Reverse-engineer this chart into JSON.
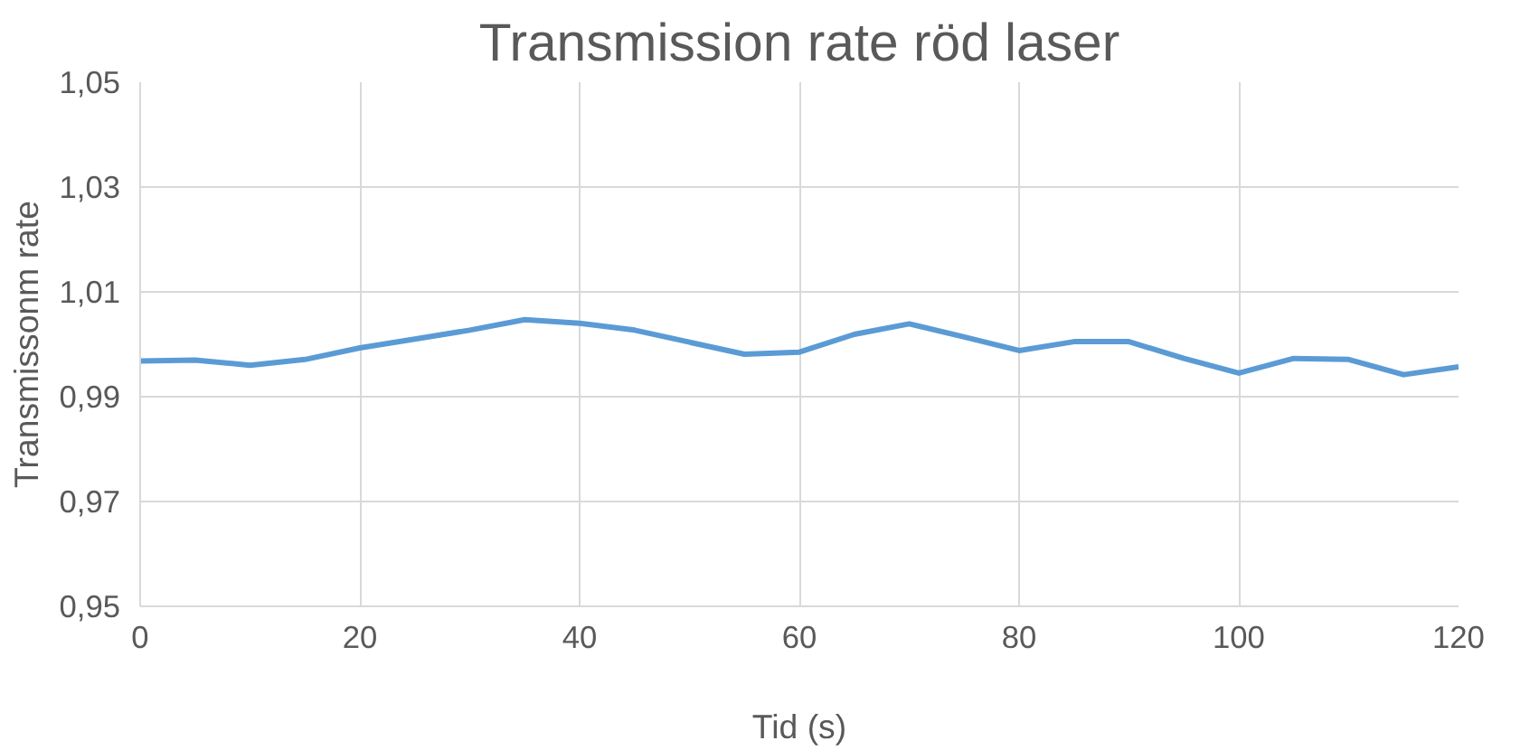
{
  "chart_data": {
    "type": "line",
    "title": "Transmission rate röd laser",
    "xlabel": "Tid (s)",
    "ylabel": "Transmissonm rate",
    "x": [
      0,
      5,
      10,
      15,
      20,
      25,
      30,
      35,
      40,
      45,
      50,
      55,
      60,
      65,
      70,
      75,
      80,
      85,
      90,
      95,
      100,
      105,
      110,
      115,
      120
    ],
    "series": [
      {
        "color": "#5b9bd5",
        "values": [
          0.9968,
          0.997,
          0.996,
          0.9971,
          0.9993,
          1.001,
          1.0027,
          1.0047,
          1.004,
          1.0027,
          1.0004,
          0.9981,
          0.9985,
          1.0019,
          1.0039,
          1.0014,
          0.9988,
          1.0005,
          1.0005,
          0.9973,
          0.9945,
          0.9973,
          0.9971,
          0.9942,
          0.9957
        ]
      }
    ],
    "xlim": [
      0,
      120
    ],
    "xticks": [
      0,
      20,
      40,
      60,
      80,
      100,
      120
    ],
    "ylim": [
      0.95,
      1.05
    ],
    "yticks": [
      {
        "value": 0.95,
        "label": "0,95"
      },
      {
        "value": 0.97,
        "label": "0,97"
      },
      {
        "value": 0.99,
        "label": "0,99"
      },
      {
        "value": 1.01,
        "label": "1,01"
      },
      {
        "value": 1.03,
        "label": "1,03"
      },
      {
        "value": 1.05,
        "label": "1,05"
      }
    ],
    "grid": true,
    "marker": "none",
    "line_style": "solid"
  }
}
